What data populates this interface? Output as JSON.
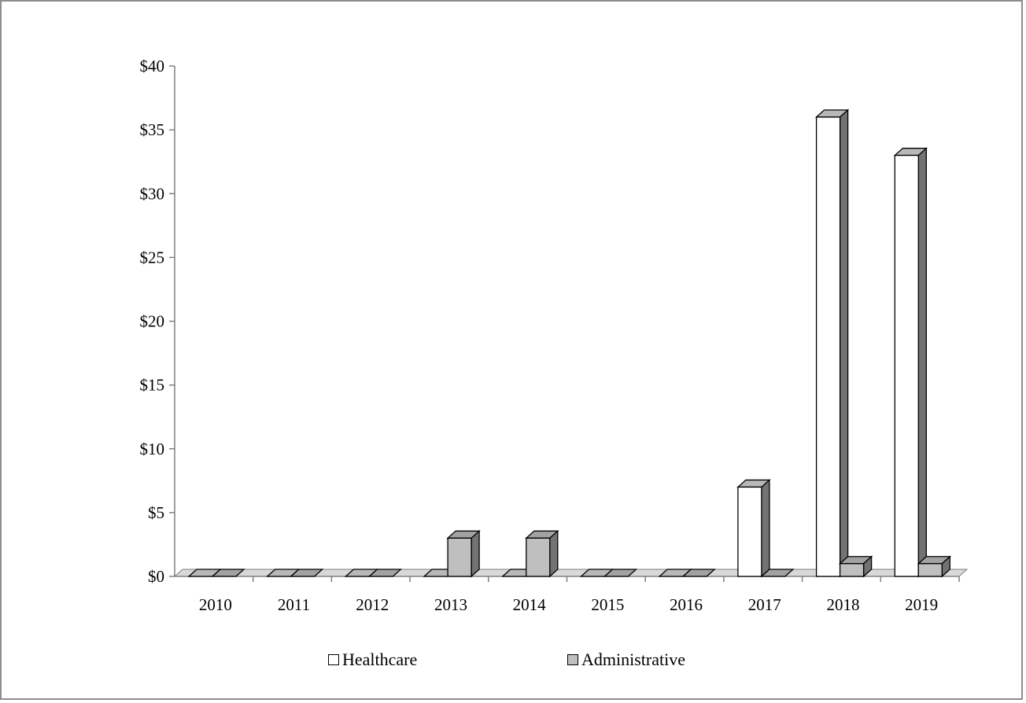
{
  "chart_data": {
    "type": "bar",
    "categories": [
      "2010",
      "2011",
      "2012",
      "2013",
      "2014",
      "2015",
      "2016",
      "2017",
      "2018",
      "2019"
    ],
    "series": [
      {
        "name": "Healthcare",
        "values": [
          0,
          0,
          0,
          0,
          0,
          0,
          0,
          7,
          36,
          33
        ],
        "color": "#ffffff"
      },
      {
        "name": "Administrative",
        "values": [
          0,
          0,
          0,
          3,
          3,
          0,
          0,
          0,
          1,
          1
        ],
        "color": "#bfbfbf"
      }
    ],
    "ylim": [
      0,
      40
    ],
    "yticks": [
      "$0",
      "$5",
      "$10",
      "$15",
      "$20",
      "$25",
      "$30",
      "$35",
      "$40"
    ],
    "legend_position": "bottom",
    "style": "3d-column",
    "grid": false
  }
}
